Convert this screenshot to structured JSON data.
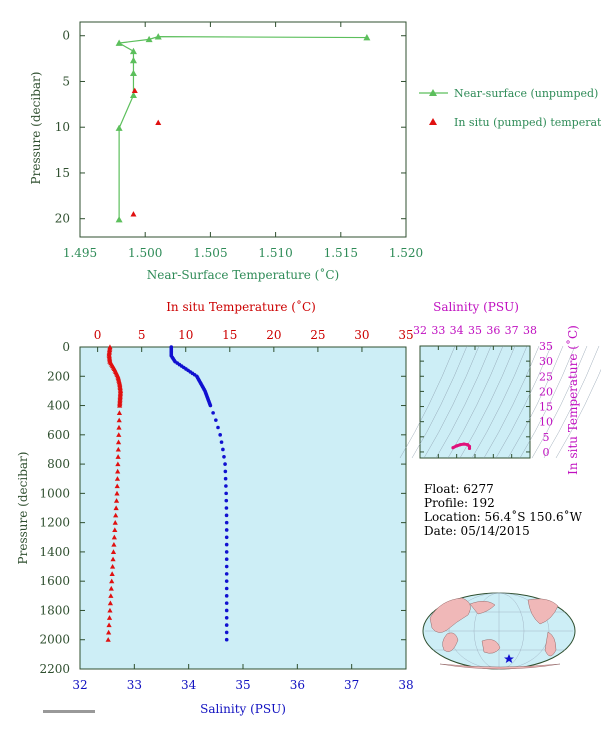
{
  "chart_data": [
    {
      "type": "line",
      "xlabel": "Near-Surface Temperature (˚C)",
      "ylabel": "Pressure (decibar)",
      "xlim": [
        1.495,
        1.52
      ],
      "ylim": [
        22,
        -1.5
      ],
      "x_ticks": [
        "1.495",
        "1.500",
        "1.505",
        "1.510",
        "1.515",
        "1.520"
      ],
      "y_ticks": [
        "0",
        "5",
        "10",
        "15",
        "20"
      ],
      "series": [
        {
          "name": "Near-surface (unpumped) temperature.",
          "color": "#5cbf5c",
          "marker": "triangle",
          "points": [
            [
              1.517,
              0.2
            ],
            [
              1.501,
              0.1
            ],
            [
              1.5003,
              0.4
            ],
            [
              1.498,
              0.8
            ],
            [
              1.4991,
              1.7
            ],
            [
              1.4991,
              2.7
            ],
            [
              1.4991,
              4.1
            ],
            [
              1.4991,
              6.5
            ],
            [
              1.498,
              10.1
            ],
            [
              1.498,
              20.1
            ]
          ]
        },
        {
          "name": "In situ (pumped) temperature.",
          "color": "#e01010",
          "marker": "triangle",
          "points": [
            [
              1.4992,
              6.0
            ],
            [
              1.501,
              9.5
            ],
            [
              1.4991,
              19.5
            ]
          ]
        }
      ]
    },
    {
      "type": "scatter",
      "ylabel": "Pressure (decibar)",
      "top_xlabel": "In situ Temperature (˚C)",
      "bottom_xlabel": "Salinity (PSU)",
      "temperature_xlim": [
        -2,
        35
      ],
      "salinity_xlim": [
        32,
        38
      ],
      "ylim": [
        2200,
        0
      ],
      "temperature_ticks": [
        "0",
        "5",
        "10",
        "15",
        "20",
        "25",
        "30",
        "35"
      ],
      "salinity_ticks": [
        "32",
        "33",
        "34",
        "35",
        "36",
        "37",
        "38"
      ],
      "y_ticks": [
        "0",
        "200",
        "400",
        "600",
        "800",
        "1000",
        "1200",
        "1400",
        "1600",
        "1800",
        "2000",
        "2200"
      ],
      "temperature_color": "#e01010",
      "salinity_color": "#1010d0",
      "temperature_profile": [
        [
          1.4,
          0
        ],
        [
          1.3,
          50
        ],
        [
          1.4,
          100
        ],
        [
          1.9,
          150
        ],
        [
          2.3,
          200
        ],
        [
          2.5,
          250
        ],
        [
          2.6,
          300
        ],
        [
          2.5,
          400
        ],
        [
          2.4,
          600
        ],
        [
          2.3,
          800
        ],
        [
          2.2,
          1000
        ],
        [
          2.0,
          1200
        ],
        [
          1.8,
          1400
        ],
        [
          1.6,
          1600
        ],
        [
          1.4,
          1800
        ],
        [
          1.2,
          2000
        ]
      ],
      "salinity_profile": [
        [
          33.68,
          0
        ],
        [
          33.68,
          60
        ],
        [
          33.75,
          100
        ],
        [
          33.95,
          150
        ],
        [
          34.15,
          200
        ],
        [
          34.3,
          300
        ],
        [
          34.4,
          400
        ],
        [
          34.5,
          500
        ],
        [
          34.58,
          600
        ],
        [
          34.63,
          700
        ],
        [
          34.67,
          800
        ],
        [
          34.69,
          1000
        ],
        [
          34.7,
          1200
        ],
        [
          34.7,
          1500
        ],
        [
          34.7,
          1800
        ],
        [
          34.7,
          2000
        ]
      ]
    },
    {
      "type": "scatter",
      "xlabel": "Salinity (PSU)",
      "ylabel": "In situ Temperature (˚C)",
      "xlim": [
        32,
        38
      ],
      "ylim": [
        -2,
        35
      ],
      "x_ticks": [
        "32",
        "33",
        "34",
        "35",
        "36",
        "37",
        "38"
      ],
      "y_ticks": [
        "0",
        "5",
        "10",
        "15",
        "20",
        "25",
        "30",
        "35"
      ],
      "color": "#e0107a",
      "points": [
        [
          33.8,
          1.4
        ],
        [
          34.0,
          2.0
        ],
        [
          34.2,
          2.4
        ],
        [
          34.4,
          2.6
        ],
        [
          34.6,
          2.4
        ],
        [
          34.7,
          1.8
        ],
        [
          34.7,
          1.2
        ]
      ]
    }
  ],
  "float_info": {
    "float": "Float:  6277",
    "profile": "Profile:  192",
    "location": "Location:  56.4˚S  150.6˚W",
    "date": "Date:  05/14/2015"
  }
}
